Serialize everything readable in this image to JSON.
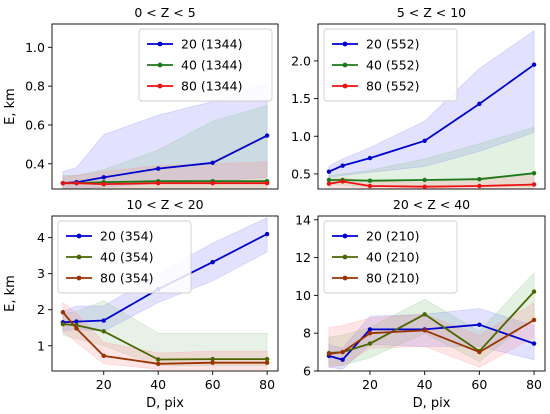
{
  "figure": {
    "x_label": "D, pix",
    "y_label": "E, km"
  },
  "chart_data": [
    {
      "type": "line",
      "title": "0 < Z < 5",
      "xlabel": "",
      "ylabel": "E, km",
      "x": [
        5,
        10,
        20,
        40,
        60,
        80
      ],
      "xlim": [
        1,
        84
      ],
      "ylim": [
        0.27,
        1.12
      ],
      "xticks": [],
      "yticks": [
        0.4,
        0.6,
        0.8,
        1.0
      ],
      "ytick_labels": [
        "0.4",
        "0.6",
        "0.8",
        "1.0"
      ],
      "legend": "upper-right",
      "series": [
        {
          "name": "20 (1344)",
          "color": "#0000cc",
          "fill": "#7b7bff",
          "values": [
            0.3,
            0.305,
            0.33,
            0.375,
            0.405,
            0.545
          ],
          "lower": [
            0.27,
            0.27,
            0.28,
            0.3,
            0.31,
            0.33
          ],
          "upper": [
            0.36,
            0.38,
            0.55,
            0.65,
            0.72,
            0.82
          ]
        },
        {
          "name": "40 (1344)",
          "color": "#1a7a1a",
          "fill": "#80c080",
          "values": [
            0.3,
            0.3,
            0.305,
            0.31,
            0.31,
            0.31
          ],
          "lower": [
            0.27,
            0.27,
            0.27,
            0.27,
            0.27,
            0.27
          ],
          "upper": [
            0.34,
            0.34,
            0.37,
            0.47,
            0.62,
            0.7
          ]
        },
        {
          "name": "80 (1344)",
          "color": "#ee1111",
          "fill": "#ff8a8a",
          "values": [
            0.3,
            0.3,
            0.295,
            0.3,
            0.3,
            0.3
          ],
          "lower": [
            0.27,
            0.27,
            0.27,
            0.27,
            0.27,
            0.27
          ],
          "upper": [
            0.33,
            0.34,
            0.36,
            0.39,
            0.4,
            0.41
          ]
        }
      ]
    },
    {
      "type": "line",
      "title": "5 < Z < 10",
      "xlabel": "",
      "ylabel": "",
      "x": [
        5,
        10,
        20,
        40,
        60,
        80
      ],
      "xlim": [
        1,
        84
      ],
      "ylim": [
        0.3,
        2.49
      ],
      "xticks": [],
      "yticks": [
        0.5,
        1.0,
        1.5,
        2.0
      ],
      "ytick_labels": [
        "0.5",
        "1.0",
        "1.5",
        "2.0"
      ],
      "legend": "upper-left",
      "series": [
        {
          "name": "20 (552)",
          "color": "#0000cc",
          "fill": "#7b7bff",
          "values": [
            0.53,
            0.61,
            0.71,
            0.94,
            1.43,
            1.95
          ],
          "lower": [
            0.45,
            0.48,
            0.52,
            0.6,
            0.8,
            1.05
          ],
          "upper": [
            0.6,
            0.7,
            0.85,
            1.2,
            1.9,
            2.4
          ]
        },
        {
          "name": "40 (552)",
          "color": "#1a7a1a",
          "fill": "#80c080",
          "values": [
            0.42,
            0.42,
            0.41,
            0.42,
            0.43,
            0.51
          ],
          "lower": [
            0.36,
            0.35,
            0.33,
            0.33,
            0.33,
            0.33
          ],
          "upper": [
            0.48,
            0.5,
            0.55,
            0.7,
            0.9,
            1.12
          ]
        },
        {
          "name": "80 (552)",
          "color": "#ee1111",
          "fill": "#ff8a8a",
          "values": [
            0.37,
            0.4,
            0.34,
            0.33,
            0.34,
            0.36
          ],
          "lower": [
            0.32,
            0.32,
            0.31,
            0.31,
            0.31,
            0.31
          ],
          "upper": [
            0.43,
            0.45,
            0.4,
            0.39,
            0.45,
            0.5
          ]
        }
      ]
    },
    {
      "type": "line",
      "title": "10 < Z < 20",
      "xlabel": "D, pix",
      "ylabel": "E, km",
      "x": [
        5,
        10,
        20,
        40,
        60,
        80
      ],
      "xlim": [
        1,
        84
      ],
      "ylim": [
        0.3,
        4.6
      ],
      "xticks": [
        20,
        40,
        60,
        80
      ],
      "xtick_labels": [
        "20",
        "40",
        "60",
        "80"
      ],
      "yticks": [
        1,
        2,
        3,
        4
      ],
      "ytick_labels": [
        "1",
        "2",
        "3",
        "4"
      ],
      "legend": "upper-left",
      "series": [
        {
          "name": "20 (354)",
          "color": "#0000cc",
          "fill": "#7b7bff",
          "values": [
            1.65,
            1.67,
            1.7,
            2.57,
            3.32,
            4.1
          ],
          "lower": [
            1.4,
            1.45,
            1.4,
            2.2,
            2.8,
            3.6
          ],
          "upper": [
            1.95,
            2.1,
            2.1,
            3.0,
            3.85,
            4.55
          ]
        },
        {
          "name": "40 (354)",
          "color": "#4a6600",
          "fill": "#90c090",
          "values": [
            1.6,
            1.57,
            1.4,
            0.62,
            0.63,
            0.63
          ],
          "lower": [
            1.3,
            1.2,
            1.0,
            0.45,
            0.45,
            0.45
          ],
          "upper": [
            1.9,
            1.95,
            2.25,
            1.35,
            1.35,
            1.35
          ]
        },
        {
          "name": "80 (354)",
          "color": "#993300",
          "fill": "#ff8a8a",
          "values": [
            1.93,
            1.48,
            0.72,
            0.5,
            0.53,
            0.53
          ],
          "lower": [
            1.4,
            1.1,
            0.5,
            0.35,
            0.35,
            0.35
          ],
          "upper": [
            2.2,
            1.9,
            1.1,
            0.8,
            0.85,
            0.85
          ]
        }
      ]
    },
    {
      "type": "line",
      "title": "20 < Z < 40",
      "xlabel": "D, pix",
      "ylabel": "",
      "x": [
        5,
        10,
        20,
        40,
        60,
        80
      ],
      "xlim": [
        1,
        84
      ],
      "ylim": [
        6,
        14.2
      ],
      "xticks": [
        20,
        40,
        60,
        80
      ],
      "xtick_labels": [
        "20",
        "40",
        "60",
        "80"
      ],
      "yticks": [
        6,
        8,
        10,
        12,
        14
      ],
      "ytick_labels": [
        "6",
        "8",
        "10",
        "12",
        "14"
      ],
      "legend": "upper-left",
      "series": [
        {
          "name": "20 (210)",
          "color": "#0000cc",
          "fill": "#7b7bff",
          "values": [
            6.8,
            6.6,
            8.2,
            8.2,
            8.45,
            7.45
          ],
          "lower": [
            6.2,
            6.1,
            7.4,
            7.3,
            7.3,
            6.6
          ],
          "upper": [
            7.4,
            7.2,
            8.9,
            9.0,
            9.3,
            8.4
          ]
        },
        {
          "name": "40 (210)",
          "color": "#4a6600",
          "fill": "#80c080",
          "values": [
            6.95,
            7.0,
            7.45,
            9.0,
            7.05,
            10.2
          ],
          "lower": [
            6.3,
            6.3,
            6.7,
            8.0,
            6.5,
            8.8
          ],
          "upper": [
            7.8,
            7.9,
            8.3,
            9.8,
            8.1,
            11.2
          ]
        },
        {
          "name": "80 (210)",
          "color": "#993300",
          "fill": "#ff8a8a",
          "values": [
            6.9,
            7.0,
            8.0,
            8.15,
            7.0,
            8.7
          ],
          "lower": [
            6.2,
            6.3,
            7.2,
            7.3,
            6.2,
            7.8
          ],
          "upper": [
            8.3,
            8.4,
            8.8,
            9.0,
            7.9,
            9.6
          ]
        }
      ]
    }
  ]
}
